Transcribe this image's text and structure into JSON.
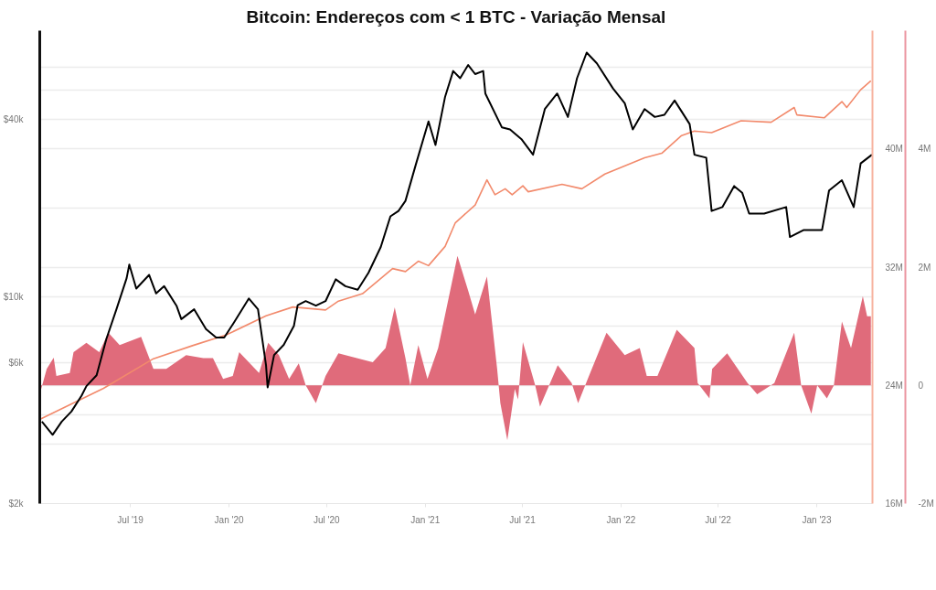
{
  "chart_data": {
    "type": "line",
    "title": "Bitcoin: Endereços com < 1 BTC - Variação Mensal",
    "log": "y",
    "grid": "y",
    "xlim": [
      "2019-01-13",
      "2023-04-15"
    ],
    "xticks": [
      {
        "value": "2019-07-01",
        "label": "Jul '19"
      },
      {
        "value": "2020-01-01",
        "label": "Jan '20"
      },
      {
        "value": "2020-07-01",
        "label": "Jul '20"
      },
      {
        "value": "2021-01-01",
        "label": "Jan '21"
      },
      {
        "value": "2021-07-01",
        "label": "Jul '21"
      },
      {
        "value": "2022-01-01",
        "label": "Jan '22"
      },
      {
        "value": "2022-07-01",
        "label": "Jul '22"
      },
      {
        "value": "2023-01-01",
        "label": "Jan '23"
      }
    ],
    "ylim": [
      2000,
      80000
    ],
    "yticks": [
      {
        "value": 2000,
        "label": "$2k"
      },
      {
        "value": 4000,
        "label": null
      },
      {
        "value": 6000,
        "label": "$6k"
      },
      {
        "value": 10000,
        "label": "$10k"
      },
      {
        "value": 40000,
        "label": "$40k"
      },
      {
        "value": 60000,
        "label": null
      }
    ],
    "y2lim": [
      16000000,
      48000000
    ],
    "y2ticks": [
      {
        "value": 16000000,
        "label": "16M"
      },
      {
        "value": 20000000,
        "label": null
      },
      {
        "value": 24000000,
        "label": "24M"
      },
      {
        "value": 28000000,
        "label": null
      },
      {
        "value": 32000000,
        "label": "32M"
      },
      {
        "value": 36000000,
        "label": null
      },
      {
        "value": 40000000,
        "label": "40M"
      },
      {
        "value": 44000000,
        "label": null
      }
    ],
    "y3lim": [
      -2000000,
      6000000
    ],
    "y3ticks": [
      {
        "value": -2000000,
        "label": "-2M"
      },
      {
        "value": 0,
        "label": "0"
      },
      {
        "value": 2000000,
        "label": "2M"
      },
      {
        "value": 4000000,
        "label": "4M"
      }
    ],
    "series": [
      {
        "type": "area",
        "axis": "y3",
        "color": "#e06b7b",
        "x": [
          "2019-01-13",
          "2019-01-26",
          "2019-02-08",
          "2019-02-13",
          "2019-03-10",
          "2019-03-17",
          "2019-04-10",
          "2019-05-04",
          "2019-05-21",
          "2019-06-11",
          "2019-07-21",
          "2019-08-13",
          "2019-09-06",
          "2019-10-13",
          "2019-11-14",
          "2019-12-02",
          "2019-12-21",
          "2020-01-08",
          "2020-01-20",
          "2020-02-26",
          "2020-03-14",
          "2020-04-03",
          "2020-04-22",
          "2020-05-10",
          "2020-05-23",
          "2020-06-11",
          "2020-06-29",
          "2020-07-23",
          "2020-09-25",
          "2020-10-19",
          "2020-11-05",
          "2020-11-25",
          "2020-12-04",
          "2020-12-19",
          "2021-01-05",
          "2021-01-25",
          "2021-03-02",
          "2021-03-22",
          "2021-04-04",
          "2021-04-26",
          "2021-05-15",
          "2021-05-21",
          "2021-06-03",
          "2021-06-17",
          "2021-06-23",
          "2021-07-02",
          "2021-07-25",
          "2021-08-03",
          "2021-09-05",
          "2021-10-01",
          "2021-10-13",
          "2021-10-31",
          "2021-12-05",
          "2022-01-08",
          "2022-02-05",
          "2022-02-18",
          "2022-03-10",
          "2022-04-15",
          "2022-05-18",
          "2022-05-24",
          "2022-06-15",
          "2022-06-20",
          "2022-07-18",
          "2022-08-25",
          "2022-09-12",
          "2022-10-14",
          "2022-11-20",
          "2022-12-03",
          "2022-12-22",
          "2023-01-02",
          "2023-01-20",
          "2023-02-02",
          "2023-02-17",
          "2023-03-06",
          "2023-03-28",
          "2023-04-05",
          "2023-04-12"
        ],
        "values": [
          -150000,
          280000,
          470000,
          160000,
          210000,
          560000,
          720000,
          560000,
          890000,
          680000,
          820000,
          280000,
          280000,
          510000,
          460000,
          460000,
          110000,
          160000,
          560000,
          210000,
          720000,
          510000,
          110000,
          370000,
          0,
          -300000,
          160000,
          540000,
          390000,
          630000,
          1320000,
          460000,
          0,
          680000,
          110000,
          630000,
          2190000,
          1600000,
          1200000,
          1840000,
          280000,
          -300000,
          -930000,
          -60000,
          -240000,
          730000,
          0,
          -360000,
          340000,
          40000,
          -300000,
          110000,
          890000,
          510000,
          630000,
          160000,
          160000,
          940000,
          630000,
          40000,
          -220000,
          280000,
          540000,
          40000,
          -150000,
          40000,
          890000,
          0,
          -480000,
          0,
          -220000,
          0,
          1080000,
          630000,
          1510000,
          1170000,
          1170000
        ]
      },
      {
        "axis": "y2",
        "color": "#f28a6c",
        "x": [
          "2019-01-13",
          "2019-05-12",
          "2019-08-13",
          "2019-10-26",
          "2019-12-26",
          "2020-03-10",
          "2020-04-29",
          "2020-06-29",
          "2020-07-23",
          "2020-09-06",
          "2020-11-01",
          "2020-11-25",
          "2020-12-19",
          "2021-01-07",
          "2021-02-07",
          "2021-02-26",
          "2021-04-04",
          "2021-04-26",
          "2021-05-11",
          "2021-05-30",
          "2021-06-12",
          "2021-07-02",
          "2021-07-12",
          "2021-09-13",
          "2021-10-20",
          "2021-12-02",
          "2022-02-14",
          "2022-03-18",
          "2022-04-24",
          "2022-05-18",
          "2022-06-19",
          "2022-08-13",
          "2022-10-08",
          "2022-11-20",
          "2022-11-25",
          "2023-01-15",
          "2023-02-17",
          "2023-02-26",
          "2023-03-24",
          "2023-04-12"
        ],
        "values": [
          21700000,
          23800000,
          25800000,
          26700000,
          27400000,
          28700000,
          29300000,
          29100000,
          29700000,
          30200000,
          31900000,
          31700000,
          32400000,
          32100000,
          33400000,
          35000000,
          36200000,
          37900000,
          36900000,
          37300000,
          36900000,
          37500000,
          37100000,
          37600000,
          37300000,
          38300000,
          39400000,
          39700000,
          40900000,
          41200000,
          41100000,
          41900000,
          41800000,
          42800000,
          42300000,
          42100000,
          43200000,
          42800000,
          44000000,
          44600000
        ]
      },
      {
        "axis": "y",
        "color": "#000000",
        "x": [
          "2019-01-17",
          "2019-02-06",
          "2019-02-23",
          "2019-03-13",
          "2019-04-01",
          "2019-04-10",
          "2019-04-29",
          "2019-05-17",
          "2019-06-05",
          "2019-06-24",
          "2019-06-29",
          "2019-07-12",
          "2019-08-05",
          "2019-08-18",
          "2019-09-02",
          "2019-09-25",
          "2019-10-04",
          "2019-10-28",
          "2019-11-19",
          "2019-12-08",
          "2019-12-23",
          "2020-01-10",
          "2020-02-07",
          "2020-02-24",
          "2020-03-10",
          "2020-03-13",
          "2020-03-25",
          "2020-04-12",
          "2020-05-01",
          "2020-05-08",
          "2020-05-23",
          "2020-06-11",
          "2020-06-29",
          "2020-07-18",
          "2020-08-05",
          "2020-08-28",
          "2020-09-17",
          "2020-10-10",
          "2020-10-28",
          "2020-11-12",
          "2020-11-25",
          "2020-12-14",
          "2021-01-07",
          "2021-01-20",
          "2021-02-07",
          "2021-02-22",
          "2021-03-07",
          "2021-03-22",
          "2021-04-04",
          "2021-04-19",
          "2021-04-23",
          "2021-05-24",
          "2021-06-08",
          "2021-06-30",
          "2021-07-21",
          "2021-08-12",
          "2021-09-04",
          "2021-09-24",
          "2021-10-11",
          "2021-10-29",
          "2021-11-17",
          "2021-12-17",
          "2022-01-08",
          "2022-01-23",
          "2022-02-14",
          "2022-03-05",
          "2022-03-23",
          "2022-04-11",
          "2022-05-09",
          "2022-05-18",
          "2022-06-09",
          "2022-06-19",
          "2022-07-09",
          "2022-07-31",
          "2022-08-15",
          "2022-08-28",
          "2022-09-25",
          "2022-11-05",
          "2022-11-12",
          "2022-12-08",
          "2023-01-11",
          "2023-01-24",
          "2023-02-17",
          "2023-03-11",
          "2023-03-24",
          "2023-04-14"
        ],
        "values": [
          3790,
          3420,
          3790,
          4100,
          4640,
          5000,
          5440,
          7200,
          9100,
          11600,
          12900,
          10700,
          11900,
          10300,
          10900,
          9360,
          8430,
          9100,
          7800,
          7300,
          7300,
          8200,
          9900,
          9100,
          5880,
          4950,
          6370,
          6900,
          8000,
          9400,
          9700,
          9360,
          9700,
          11500,
          10900,
          10600,
          12100,
          14800,
          18800,
          19600,
          21200,
          28000,
          39400,
          32800,
          47800,
          58400,
          55200,
          61200,
          57000,
          58400,
          49000,
          37600,
          37000,
          34200,
          30400,
          43400,
          49000,
          40800,
          55200,
          67400,
          62000,
          51000,
          45400,
          37000,
          43400,
          40800,
          41500,
          46400,
          38600,
          30400,
          29700,
          19600,
          20200,
          23800,
          22600,
          19200,
          19200,
          20200,
          16000,
          16900,
          16900,
          23000,
          24900,
          20200,
          28400,
          30400
        ]
      }
    ]
  }
}
